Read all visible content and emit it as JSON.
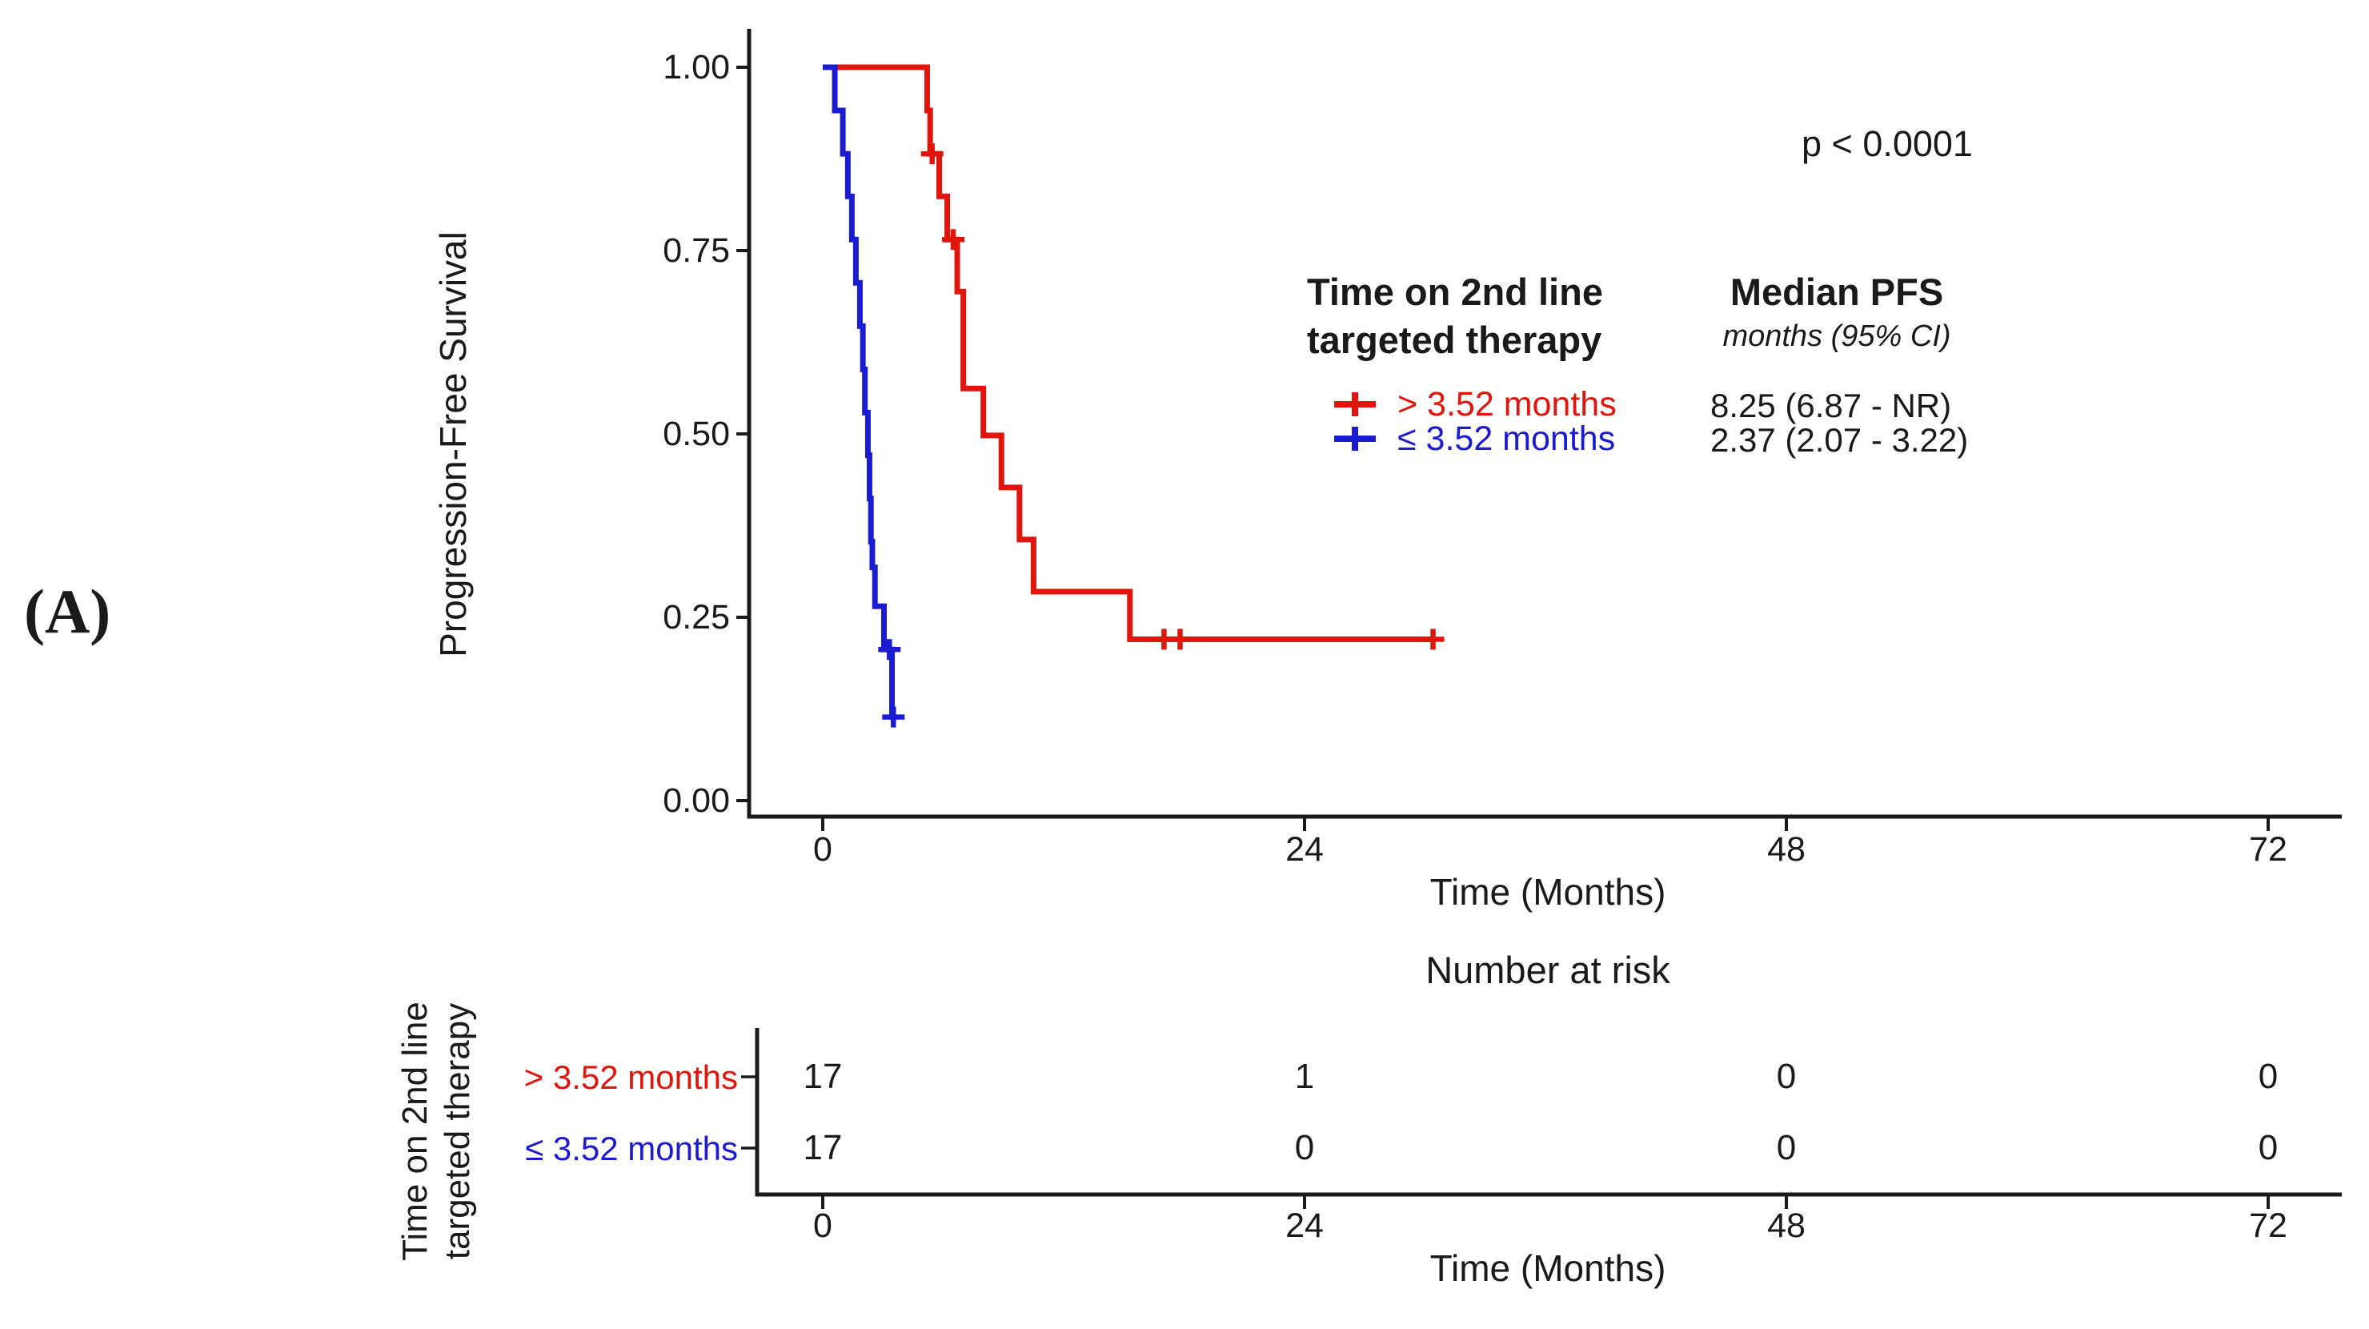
{
  "panel_label": "(A)",
  "stats": {
    "pvalue": "p < 0.0001"
  },
  "colors": {
    "red_group": "#e1150b",
    "blue_group": "#1b1bd2",
    "axis": "#1a1a1a"
  },
  "main_plot": {
    "ylabel": "Progression-Free Survival",
    "xlabel": "Time (Months)",
    "ytick_labels": [
      "1.00",
      "0.75",
      "0.50",
      "0.25",
      "0.00"
    ],
    "xtick_labels": [
      "0",
      "24",
      "48",
      "72"
    ]
  },
  "legend": {
    "group_header_line1": "Time on 2nd line",
    "group_header_line2": "targeted therapy",
    "median_header": "Median PFS",
    "median_subheader": "months (95% CI)",
    "entries": [
      {
        "label": "> 3.52 months",
        "median": "8.25 (6.87 - NR)"
      },
      {
        "label": "≤ 3.52 months",
        "median": "2.37 (2.07 - 3.22)"
      }
    ]
  },
  "risk_section": {
    "header": "Number at risk",
    "rotated_label_line1": "Time on 2nd line",
    "rotated_label_line2": "targeted therapy",
    "xlabel": "Time (Months)",
    "xtick_labels": [
      "0",
      "24",
      "48",
      "72"
    ],
    "rows": [
      {
        "label": "> 3.52 months",
        "values": [
          "17",
          "1",
          "0",
          "0"
        ]
      },
      {
        "label": "≤ 3.52 months",
        "values": [
          "17",
          "0",
          "0",
          "0"
        ]
      }
    ]
  },
  "chart_data": {
    "type": "line",
    "subtype": "kaplan-meier-step",
    "title": "",
    "xlabel": "Time (Months)",
    "ylabel": "Progression-Free Survival",
    "xlim": [
      0,
      72
    ],
    "ylim": [
      0,
      1
    ],
    "xticks": [
      0,
      24,
      48,
      72
    ],
    "yticks": [
      1.0,
      0.75,
      0.5,
      0.25,
      0.0
    ],
    "grid": false,
    "legend_position": "right-inside",
    "pvalue_annotation": "p < 0.0001",
    "series": [
      {
        "name": "> 3.52 months",
        "color": "#e1150b",
        "median_pfs_months": "8.25 (6.87 - NR)",
        "steps": [
          [
            0,
            1.0
          ],
          [
            5.2,
            0.941
          ],
          [
            5.35,
            0.882
          ],
          [
            5.8,
            0.824
          ],
          [
            6.2,
            0.765
          ],
          [
            6.7,
            0.694
          ],
          [
            7.0,
            0.562
          ],
          [
            8.0,
            0.498
          ],
          [
            8.9,
            0.427
          ],
          [
            9.8,
            0.356
          ],
          [
            10.5,
            0.285
          ],
          [
            15.3,
            0.22
          ]
        ],
        "end_time": 30.4,
        "censor_marks": [
          [
            5.45,
            0.882
          ],
          [
            6.5,
            0.765
          ],
          [
            17.0,
            0.22
          ],
          [
            17.8,
            0.22
          ],
          [
            30.4,
            0.22
          ]
        ]
      },
      {
        "name": "≤ 3.52 months",
        "color": "#1b1bd2",
        "median_pfs_months": "2.37 (2.07 - 3.22)",
        "steps": [
          [
            0,
            1.0
          ],
          [
            0.6,
            0.941
          ],
          [
            1.0,
            0.882
          ],
          [
            1.25,
            0.824
          ],
          [
            1.45,
            0.765
          ],
          [
            1.65,
            0.706
          ],
          [
            1.85,
            0.647
          ],
          [
            2.0,
            0.588
          ],
          [
            2.1,
            0.529
          ],
          [
            2.25,
            0.471
          ],
          [
            2.33,
            0.412
          ],
          [
            2.4,
            0.353
          ],
          [
            2.47,
            0.318
          ],
          [
            2.6,
            0.265
          ],
          [
            3.05,
            0.206
          ],
          [
            3.45,
            0.114
          ]
        ],
        "end_time": 3.6,
        "censor_marks": [
          [
            3.32,
            0.206
          ],
          [
            3.52,
            0.114
          ]
        ]
      }
    ],
    "risk_table": {
      "title": "Number at risk",
      "times": [
        0,
        24,
        48,
        72
      ],
      "groups": [
        "> 3.52 months",
        "≤ 3.52 months"
      ],
      "counts": [
        [
          17,
          1,
          0,
          0
        ],
        [
          17,
          0,
          0,
          0
        ]
      ]
    }
  }
}
